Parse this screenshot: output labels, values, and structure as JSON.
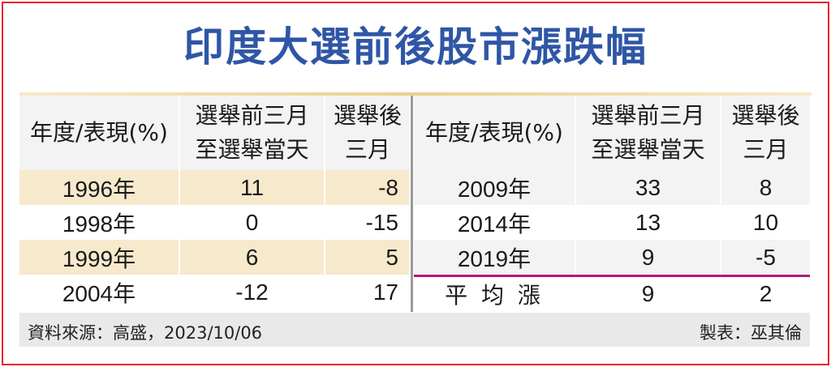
{
  "title": "印度大選前後股市漲跌幅",
  "chart_data": {
    "type": "table",
    "columns": [
      "年度/表現(%)",
      "選舉前三月至選舉當天",
      "選舉後三月"
    ],
    "header_left": {
      "year": "年度/表現(%)",
      "before_1": "選舉前三月",
      "before_2": "至選舉當天",
      "after_1": "選舉後",
      "after_2": "三月"
    },
    "header_right": {
      "year": "年度/表現(%)",
      "before_1": "選舉前三月",
      "before_2": "至選舉當天",
      "after_1": "選舉後",
      "after_2": "三月"
    },
    "rows_left": [
      {
        "year": "1996年",
        "before": "11",
        "after": "-8"
      },
      {
        "year": "1998年",
        "before": "0",
        "after": "-15"
      },
      {
        "year": "1999年",
        "before": "6",
        "after": "5"
      },
      {
        "year": "2004年",
        "before": "-12",
        "after": "17"
      }
    ],
    "rows_right": [
      {
        "year": "2009年",
        "before": "33",
        "after": "8"
      },
      {
        "year": "2014年",
        "before": "13",
        "after": "10"
      },
      {
        "year": "2019年",
        "before": "9",
        "after": "-5"
      },
      {
        "year": "平 均 漲",
        "before": "9",
        "after": "2"
      }
    ]
  },
  "footer": {
    "source": "資料來源：高盛，2023/10/06",
    "author": "製表：巫其倫"
  },
  "colors": {
    "title": "#2f56a6",
    "stripe": "#f7e9cc",
    "border": "#e8262d",
    "average_rule": "#b0197e"
  }
}
